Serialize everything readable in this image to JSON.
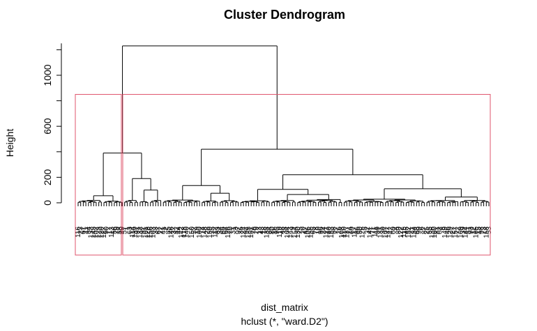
{
  "chart_data": {
    "type": "dendrogram",
    "title": "Cluster Dendrogram",
    "ylabel": "Height",
    "xlabel": "dist_matrix",
    "sub": "hclust (*, \"ward.D2\")",
    "ylim": [
      0,
      1280
    ],
    "yticks": [
      0,
      200,
      600,
      1000
    ],
    "leaf_count": 160,
    "rect_clusters": 2,
    "rect_cut_height": 850,
    "rect_color": "#df536b",
    "merges": [
      {
        "name": "root",
        "height": 1230,
        "left": "A",
        "right": "B"
      },
      {
        "name": "A",
        "height": 390,
        "left": "A1",
        "right": "A2"
      },
      {
        "name": "A1",
        "height": 55,
        "left": "leaf:0-10",
        "right": "leaf:10-18"
      },
      {
        "name": "A2",
        "height": 190,
        "left": "leaf:18-24",
        "right": "A2b"
      },
      {
        "name": "A2b",
        "height": 100,
        "left": "leaf:24-28",
        "right": "leaf:28-33"
      },
      {
        "name": "B",
        "height": 420,
        "left": "B1",
        "right": "B2"
      },
      {
        "name": "B1",
        "height": 135,
        "left": "leaf:33-48",
        "right": "B1b"
      },
      {
        "name": "B1b",
        "height": 75,
        "left": "leaf:48-55",
        "right": "leaf:55-63"
      },
      {
        "name": "B2",
        "height": 220,
        "left": "B2a",
        "right": "B2b"
      },
      {
        "name": "B2a",
        "height": 105,
        "left": "leaf:63-75",
        "right": "B2a2"
      },
      {
        "name": "B2a2",
        "height": 65,
        "left": "leaf:75-85",
        "right": "leaf:85-103"
      },
      {
        "name": "B2b",
        "height": 110,
        "left": "leaf:103-135",
        "right": "B2b2"
      },
      {
        "name": "B2b2",
        "height": 45,
        "left": "leaf:135-148",
        "right": "leaf:148-160"
      }
    ],
    "leaf_labels": [
      "116",
      "23",
      "61",
      "11",
      "54",
      "133",
      "145",
      "102",
      "123",
      "120",
      "127",
      "90",
      "17",
      "113",
      "56",
      "79",
      "88",
      "49",
      "57",
      "1",
      "63",
      "114",
      "139",
      "91",
      "132",
      "92",
      "101",
      "128",
      "156",
      "103",
      "33",
      "67",
      "22",
      "41",
      "2",
      "85",
      "146",
      "37",
      "82",
      "44",
      "142",
      "118",
      "140",
      "7",
      "150",
      "52",
      "19",
      "100",
      "74",
      "148",
      "28",
      "159",
      "35",
      "112",
      "83",
      "34",
      "66",
      "64",
      "126",
      "70",
      "31",
      "3",
      "97",
      "36",
      "124",
      "94",
      "135",
      "151",
      "76",
      "29",
      "13",
      "43",
      "18",
      "138",
      "84",
      "80",
      "16",
      "95",
      "119",
      "48",
      "38",
      "104",
      "143",
      "9",
      "154",
      "130",
      "75",
      "20",
      "47",
      "106",
      "155",
      "65",
      "78",
      "10",
      "96",
      "24",
      "121",
      "40",
      "153",
      "58",
      "77",
      "26",
      "108",
      "110",
      "137",
      "14",
      "69",
      "117",
      "86",
      "50",
      "125",
      "5",
      "32",
      "141",
      "71",
      "111",
      "59",
      "131",
      "30",
      "107",
      "147",
      "42",
      "60",
      "4",
      "89",
      "122",
      "115",
      "45",
      "152",
      "21",
      "134",
      "68",
      "99",
      "6",
      "87",
      "25",
      "55",
      "136",
      "160",
      "81",
      "62",
      "8",
      "149",
      "46",
      "129",
      "27",
      "157",
      "72",
      "109",
      "39",
      "144",
      "51",
      "93",
      "12",
      "105",
      "15",
      "98",
      "73",
      "158",
      "53"
    ]
  }
}
